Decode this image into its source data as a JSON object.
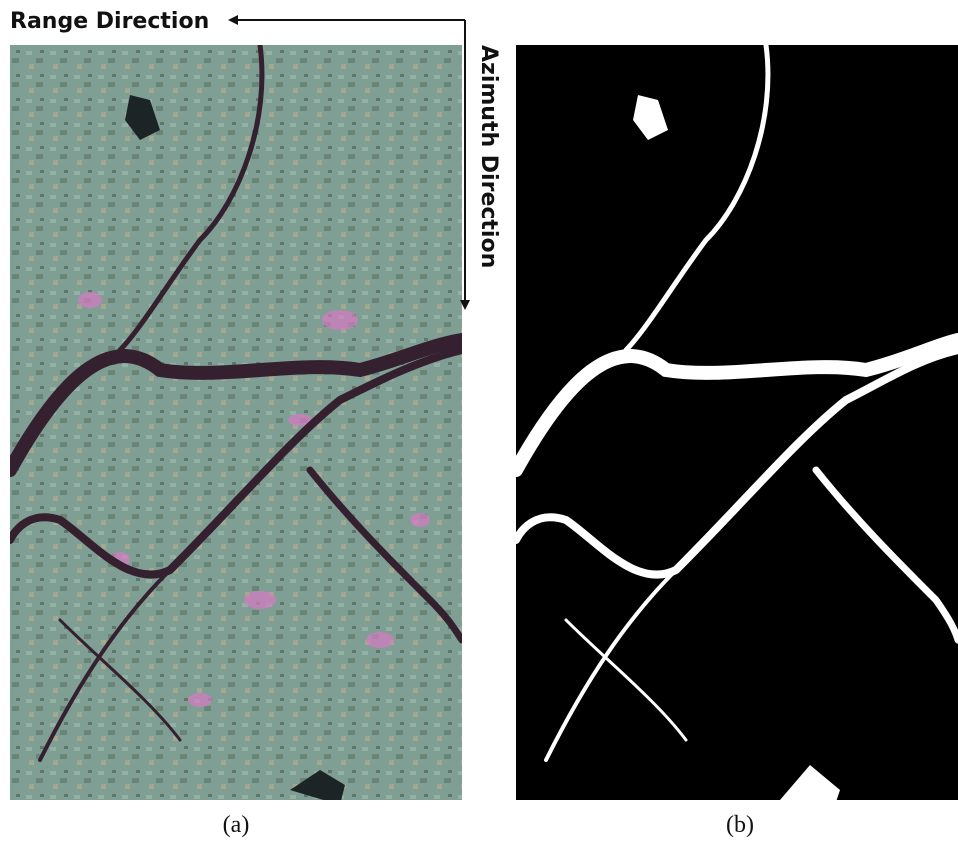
{
  "annotations": {
    "range": "Range Direction",
    "azimuth": "Azimuth Direction"
  },
  "panels": [
    {
      "caption": "(a)"
    },
    {
      "caption": "(b)"
    }
  ]
}
